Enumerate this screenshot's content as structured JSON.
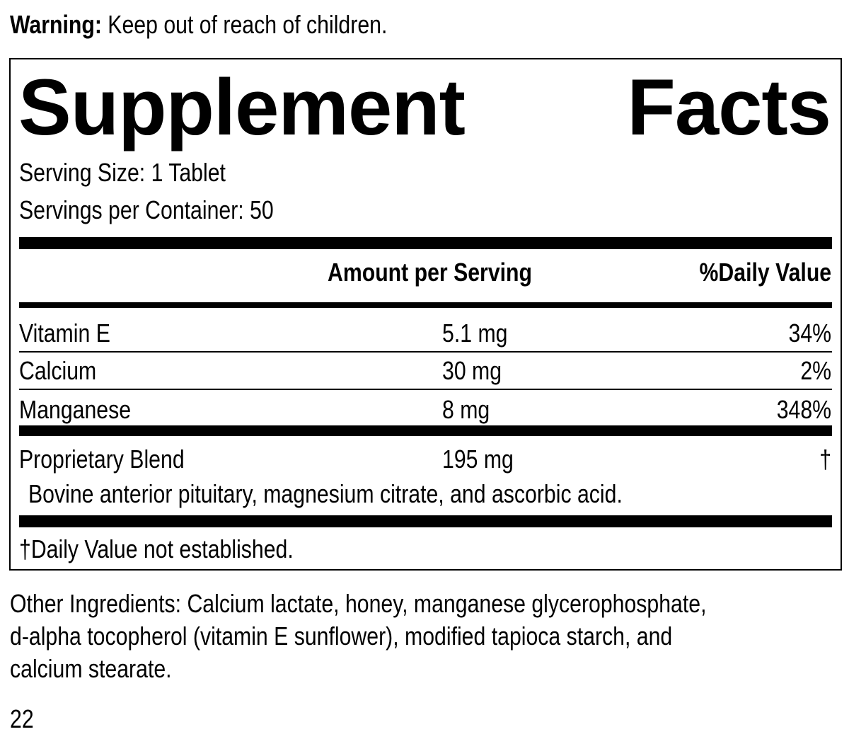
{
  "warning": {
    "label": "Warning:",
    "text": " Keep out of reach of children."
  },
  "facts": {
    "title_left": "Supplement",
    "title_right": "Facts",
    "serving_size": "Serving Size: 1 Tablet",
    "servings_per_container": "Servings per Container: 50",
    "header": {
      "amount": "Amount per Serving",
      "daily_value": "%Daily Value"
    },
    "rows": [
      {
        "name": "Vitamin E",
        "amount": "5.1 mg",
        "dv": "34%"
      },
      {
        "name": "Calcium",
        "amount": "30 mg",
        "dv": "2%"
      },
      {
        "name": "Manganese",
        "amount": "8 mg",
        "dv": "348%"
      },
      {
        "name": "Proprietary Blend",
        "amount": "195 mg",
        "dv": "†"
      }
    ],
    "blend_ingredients": "Bovine anterior pituitary, magnesium citrate, and ascorbic acid.",
    "footnote": "†Daily Value not established."
  },
  "other_ingredients": [
    "Other Ingredients: Calcium lactate, honey, manganese glycerophosphate,",
    "d-alpha tocopherol (vitamin E sunflower), modified tapioca starch, and",
    "calcium stearate."
  ],
  "page_number": "22"
}
